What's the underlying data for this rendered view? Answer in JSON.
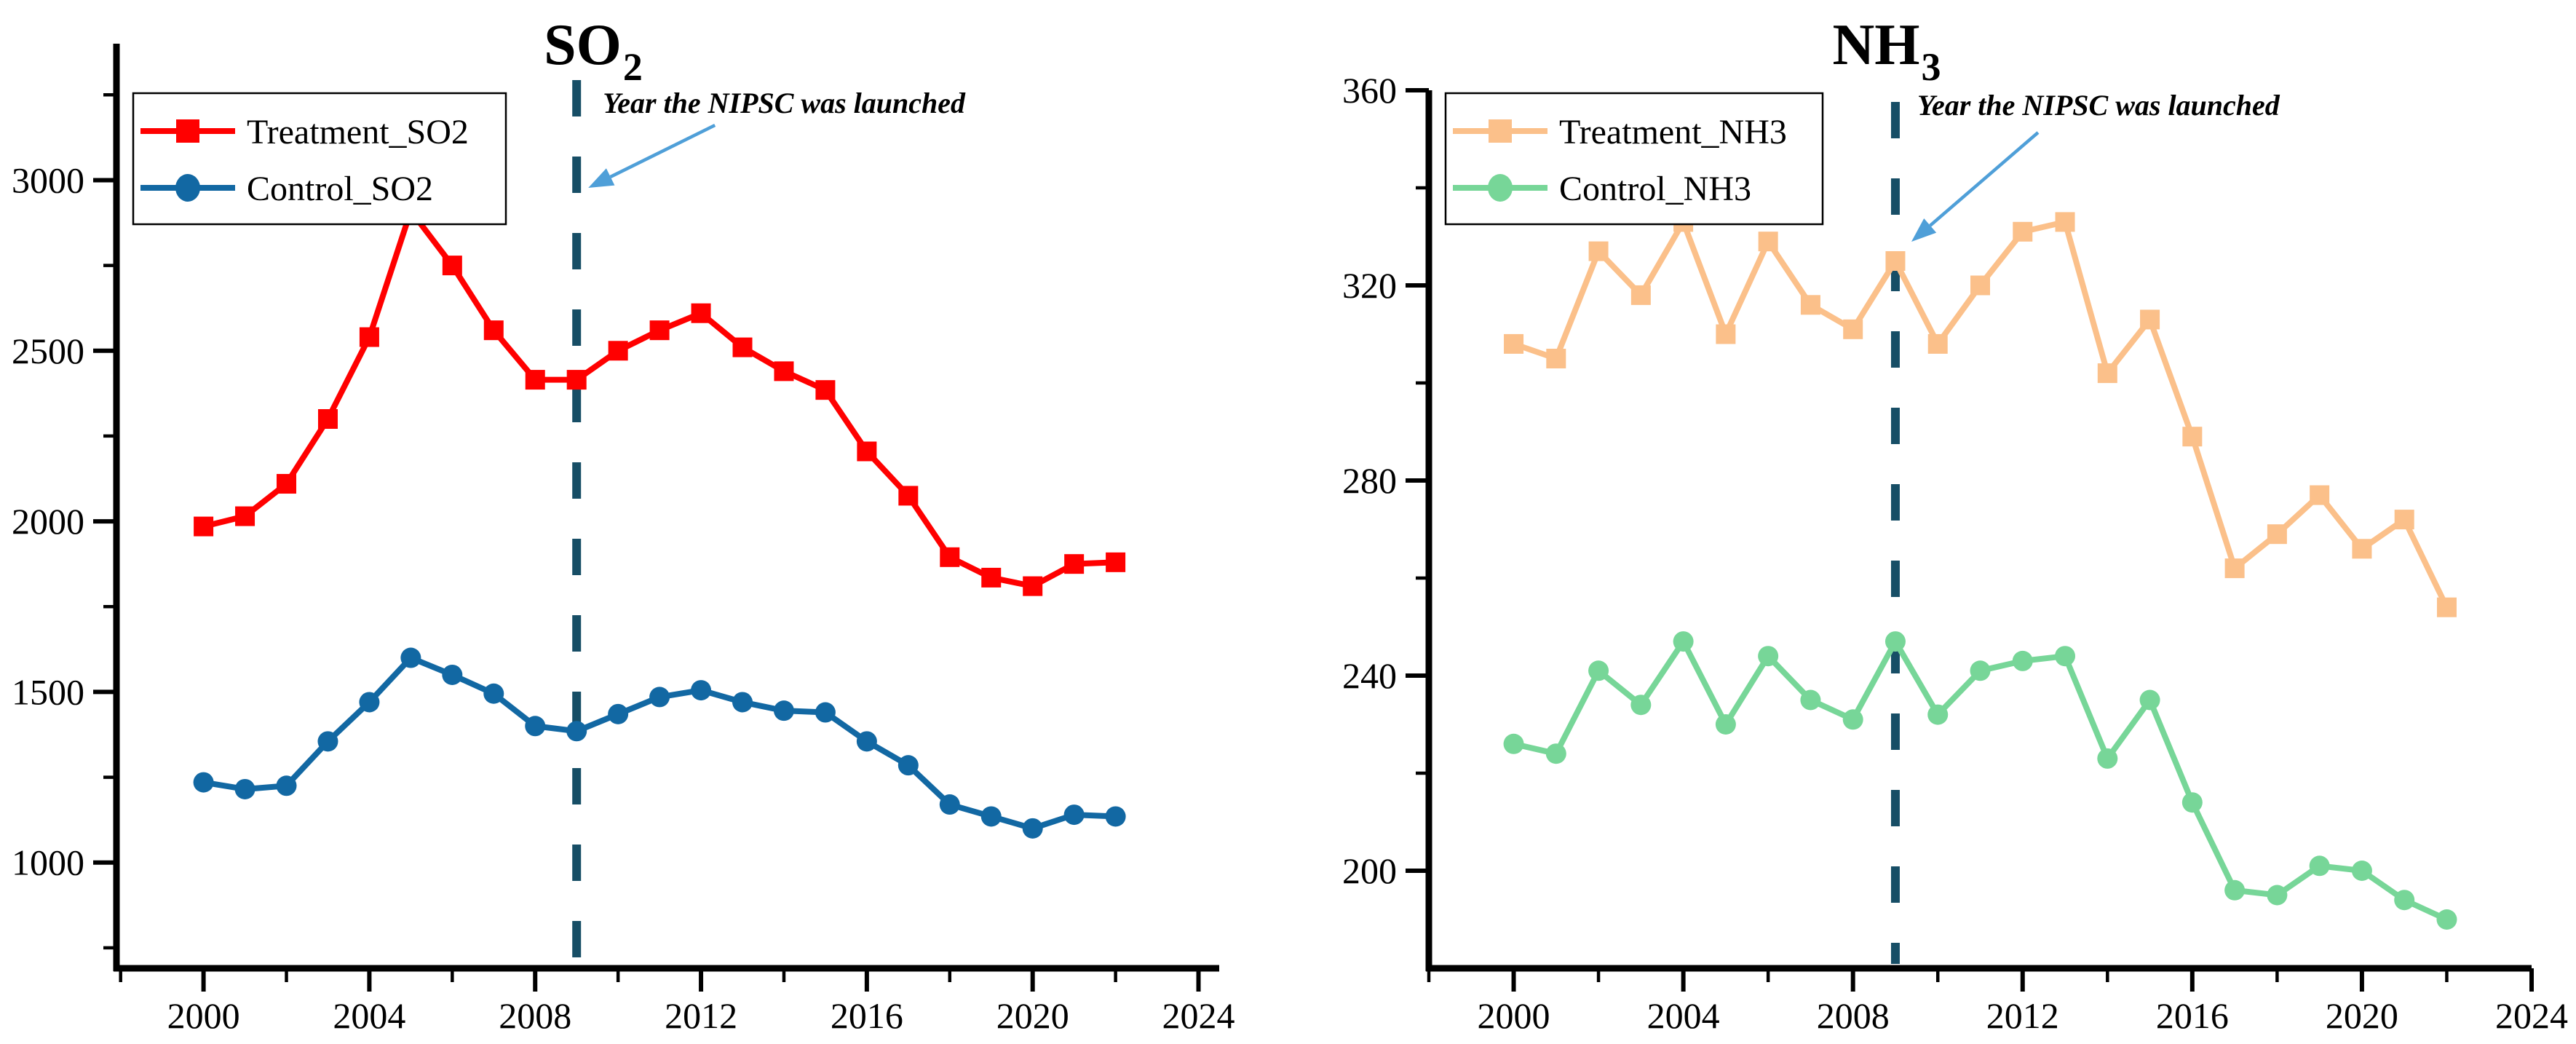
{
  "figure": {
    "background": "#ffffff",
    "axis_color": "#000000",
    "annotation_arrow_color": "#4f9fd8"
  },
  "chart_data": [
    {
      "type": "line",
      "title": "SO2",
      "title_main": "SO",
      "title_subscript": "2",
      "legend_position": "top-left",
      "grid": false,
      "x": [
        2000,
        2001,
        2002,
        2003,
        2004,
        2005,
        2006,
        2007,
        2008,
        2009,
        2010,
        2011,
        2012,
        2013,
        2014,
        2015,
        2016,
        2017,
        2018,
        2019,
        2020,
        2021,
        2022
      ],
      "x_axis": {
        "lim": [
          1997.9,
          2024.5
        ],
        "major_ticks": [
          2000,
          2004,
          2008,
          2012,
          2016,
          2020,
          2024
        ],
        "minor_ticks": [
          1998,
          2002,
          2006,
          2010,
          2014,
          2018,
          2022
        ]
      },
      "y_axis": {
        "lim": [
          690,
          3400
        ],
        "major_ticks": [
          3000,
          2500,
          2000,
          1500,
          1000
        ],
        "minor_ticks": [
          750,
          1250,
          1750,
          2250,
          2750,
          3250
        ]
      },
      "series": [
        {
          "name": "Treatment_SO2",
          "color": "#ff0000",
          "marker": "square",
          "values": [
            1985,
            2015,
            2110,
            2300,
            2540,
            2910,
            2750,
            2560,
            2415,
            2415,
            2500,
            2560,
            2610,
            2510,
            2440,
            2385,
            2205,
            2075,
            1895,
            1835,
            1810,
            1875,
            1880
          ]
        },
        {
          "name": "Control_SO2",
          "color": "#1268a3",
          "marker": "circle",
          "values": [
            1235,
            1215,
            1225,
            1355,
            1470,
            1600,
            1550,
            1495,
            1400,
            1385,
            1435,
            1485,
            1505,
            1470,
            1445,
            1440,
            1355,
            1285,
            1170,
            1135,
            1100,
            1140,
            1135
          ]
        }
      ],
      "event_line": {
        "x": 2009,
        "style": "dashed",
        "color": "#174e66",
        "label": "Year the NIPSC was launched"
      }
    },
    {
      "type": "line",
      "title": "NH3",
      "title_main": "NH",
      "title_subscript": "3",
      "legend_position": "top-left",
      "grid": false,
      "x": [
        2000,
        2001,
        2002,
        2003,
        2004,
        2005,
        2006,
        2007,
        2008,
        2009,
        2010,
        2011,
        2012,
        2013,
        2014,
        2015,
        2016,
        2017,
        2018,
        2019,
        2020,
        2021,
        2022
      ],
      "x_axis": {
        "lim": [
          1998,
          2024
        ],
        "major_ticks": [
          2000,
          2004,
          2008,
          2012,
          2016,
          2020,
          2024
        ],
        "minor_ticks": [
          1998,
          2002,
          2006,
          2010,
          2014,
          2018,
          2022
        ]
      },
      "y_axis": {
        "lim": [
          180,
          360
        ],
        "major_ticks": [
          360,
          320,
          280,
          240,
          200
        ],
        "minor_ticks": [
          220,
          260,
          300,
          340
        ]
      },
      "series": [
        {
          "name": "Treatment_NH3",
          "color": "#fbc08a",
          "marker": "square",
          "values": [
            308,
            305,
            327,
            318,
            333,
            310,
            329,
            316,
            311,
            325,
            308,
            320,
            331,
            333,
            302,
            313,
            289,
            262,
            269,
            277,
            266,
            272,
            254
          ]
        },
        {
          "name": "Control_NH3",
          "color": "#77d698",
          "marker": "circle",
          "values": [
            226,
            224,
            241,
            234,
            247,
            230,
            244,
            235,
            231,
            247,
            232,
            241,
            243,
            244,
            223,
            235,
            214,
            196,
            195,
            201,
            200,
            194,
            190
          ]
        }
      ],
      "event_line": {
        "x": 2009,
        "style": "dashed",
        "color": "#174e66",
        "label": "Year the NIPSC was launched"
      }
    }
  ]
}
